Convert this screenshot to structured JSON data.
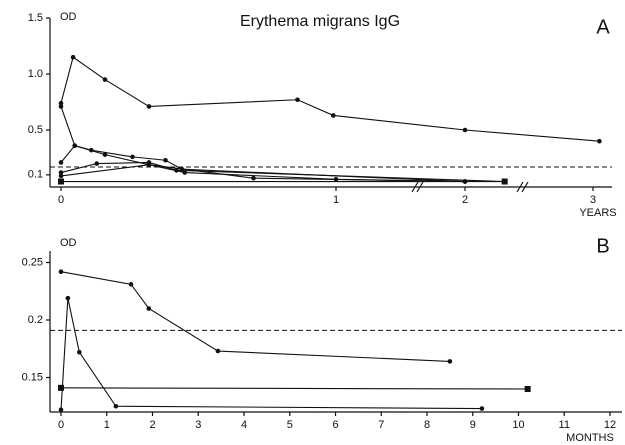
{
  "chart_data": [
    {
      "type": "line",
      "title": "Erythema migrans IgG",
      "panel": "A",
      "ylabel": "OD",
      "xlabel": "YEARS",
      "xlim": [
        0,
        3.1
      ],
      "xticks": [
        0,
        1,
        2,
        3
      ],
      "ylim": [
        0,
        1.5
      ],
      "yticks": [
        0.1,
        0.5,
        {
          "value": 1,
          "label": "1.0"
        },
        1.5
      ],
      "reference_line": 0.17,
      "color": "#111",
      "series": [
        {
          "x": [
            0,
            0.044,
            0.16,
            0.32,
            0.86,
            0.99,
            2.0,
            3.05
          ],
          "values": [
            0.74,
            1.15,
            0.95,
            0.71,
            0.77,
            0.63,
            0.5,
            0.4
          ],
          "marker": "circle"
        },
        {
          "x": [
            0,
            0.05,
            0.16,
            0.32,
            0.45,
            1.0,
            2.0
          ],
          "values": [
            0.71,
            0.36,
            0.28,
            0.19,
            0.12,
            0.06,
            0.04
          ],
          "marker": "circle"
        },
        {
          "x": [
            0,
            0.05,
            0.11,
            0.26,
            0.38,
            0.44,
            2.0
          ],
          "values": [
            0.21,
            0.36,
            0.32,
            0.26,
            0.23,
            0.15,
            0.04
          ],
          "marker": "circle"
        },
        {
          "x": [
            0,
            0.13,
            0.32,
            0.42,
            2.31
          ],
          "values": [
            0.12,
            0.2,
            0.21,
            0.14,
            0.04
          ],
          "marker": "circle"
        },
        {
          "x": [
            0,
            0.32,
            0.7,
            2.0
          ],
          "values": [
            0.09,
            0.19,
            0.07,
            0.04
          ],
          "marker": "circle"
        },
        {
          "x": [
            0,
            2.31
          ],
          "values": [
            0.04,
            0.04
          ],
          "marker": "square"
        }
      ]
    },
    {
      "type": "line",
      "panel": "B",
      "ylabel": "OD",
      "xlabel": "MONTHS",
      "xlim": [
        0,
        12
      ],
      "xticks": [
        0,
        1,
        2,
        3,
        4,
        5,
        6,
        7,
        8,
        9,
        10,
        11,
        12
      ],
      "ylim": [
        0.12,
        0.26
      ],
      "yticks": [
        0.15,
        0.2,
        0.25
      ],
      "reference_line": 0.191,
      "color": "#111",
      "series": [
        {
          "x": [
            0,
            1.53,
            1.92,
            3.43,
            8.5
          ],
          "values": [
            0.242,
            0.231,
            0.21,
            0.173,
            0.164
          ],
          "marker": "circle"
        },
        {
          "x": [
            0,
            10.2
          ],
          "values": [
            0.141,
            0.14
          ],
          "marker": "square"
        },
        {
          "x": [
            0,
            0.15,
            0.4,
            1.2,
            9.2
          ],
          "values": [
            0.122,
            0.219,
            0.172,
            0.125,
            0.123
          ],
          "marker": "circle"
        }
      ]
    }
  ]
}
